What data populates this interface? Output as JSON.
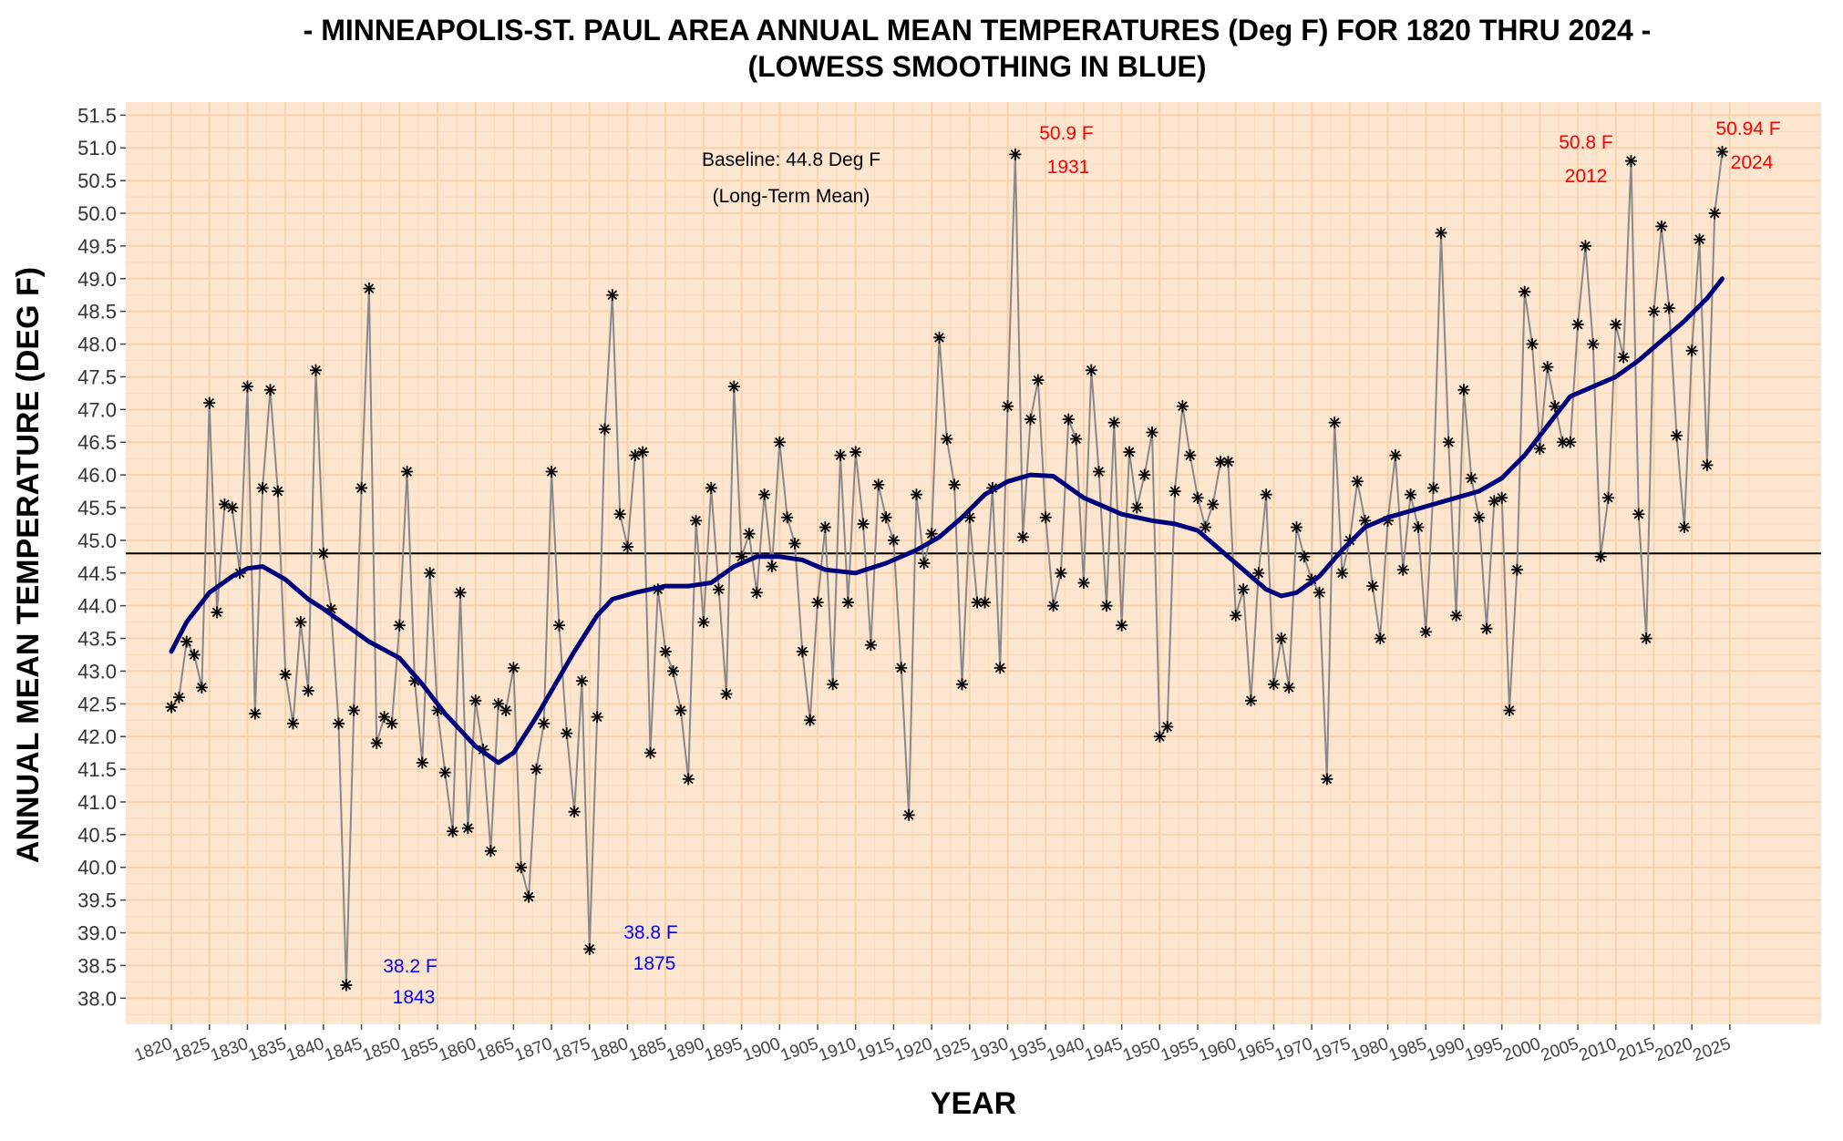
{
  "chart_data": {
    "type": "line",
    "title_line1": "- MINNEAPOLIS-ST. PAUL AREA ANNUAL MEAN TEMPERATURES (Deg F) FOR 1820 THRU 2024 -",
    "title_line2": "(LOWESS SMOOTHING IN BLUE)",
    "xlabel": "YEAR",
    "ylabel": "ANNUAL MEAN TEMPERATURE (DEG F)",
    "xlim": [
      1814,
      2037
    ],
    "ylim": [
      37.6,
      51.7
    ],
    "x_ticks": [
      1820,
      1825,
      1830,
      1835,
      1840,
      1845,
      1850,
      1855,
      1860,
      1865,
      1870,
      1875,
      1880,
      1885,
      1890,
      1895,
      1900,
      1905,
      1910,
      1915,
      1920,
      1925,
      1930,
      1935,
      1940,
      1945,
      1950,
      1955,
      1960,
      1965,
      1970,
      1975,
      1980,
      1985,
      1990,
      1995,
      2000,
      2005,
      2010,
      2015,
      2020,
      2025
    ],
    "y_ticks": [
      "38.0",
      "38.5",
      "39.0",
      "39.5",
      "40.0",
      "40.5",
      "41.0",
      "41.5",
      "42.0",
      "42.5",
      "43.0",
      "43.5",
      "44.0",
      "44.5",
      "45.0",
      "45.5",
      "46.0",
      "46.5",
      "47.0",
      "47.5",
      "48.0",
      "48.5",
      "49.0",
      "49.5",
      "50.0",
      "50.5",
      "51.0",
      "51.5"
    ],
    "grid": true,
    "colors": {
      "panel_bg": "#fde6d0",
      "grid_major": "#f7d2ad",
      "grid_minor": "#fadcbf",
      "annual_line": "#888888",
      "points": "#000000",
      "smooth_line": "#00007a",
      "baseline": "#000000",
      "anno_blue": "#0000ff",
      "anno_red": "#ff0000"
    },
    "baseline": {
      "value": 44.8,
      "label_line1": "Baseline: 44.8 Deg F",
      "label_line2": "(Long-Term Mean)"
    },
    "series": [
      {
        "name": "Annual mean",
        "x": [
          1820,
          1821,
          1822,
          1823,
          1824,
          1825,
          1826,
          1827,
          1828,
          1829,
          1830,
          1831,
          1832,
          1833,
          1834,
          1835,
          1836,
          1837,
          1838,
          1839,
          1840,
          1841,
          1842,
          1843,
          1844,
          1845,
          1846,
          1847,
          1848,
          1849,
          1850,
          1851,
          1852,
          1853,
          1854,
          1855,
          1856,
          1857,
          1858,
          1859,
          1860,
          1861,
          1862,
          1863,
          1864,
          1865,
          1866,
          1867,
          1868,
          1869,
          1870,
          1871,
          1872,
          1873,
          1874,
          1875,
          1876,
          1877,
          1878,
          1879,
          1880,
          1881,
          1882,
          1883,
          1884,
          1885,
          1886,
          1887,
          1888,
          1889,
          1890,
          1891,
          1892,
          1893,
          1894,
          1895,
          1896,
          1897,
          1898,
          1899,
          1900,
          1901,
          1902,
          1903,
          1904,
          1905,
          1906,
          1907,
          1908,
          1909,
          1910,
          1911,
          1912,
          1913,
          1914,
          1915,
          1916,
          1917,
          1918,
          1919,
          1920,
          1921,
          1922,
          1923,
          1924,
          1925,
          1926,
          1927,
          1928,
          1929,
          1930,
          1931,
          1932,
          1933,
          1934,
          1935,
          1936,
          1937,
          1938,
          1939,
          1940,
          1941,
          1942,
          1943,
          1944,
          1945,
          1946,
          1947,
          1948,
          1949,
          1950,
          1951,
          1952,
          1953,
          1954,
          1955,
          1956,
          1957,
          1958,
          1959,
          1960,
          1961,
          1962,
          1963,
          1964,
          1965,
          1966,
          1967,
          1968,
          1969,
          1970,
          1971,
          1972,
          1973,
          1974,
          1975,
          1976,
          1977,
          1978,
          1979,
          1980,
          1981,
          1982,
          1983,
          1984,
          1985,
          1986,
          1987,
          1988,
          1989,
          1990,
          1991,
          1992,
          1993,
          1994,
          1995,
          1996,
          1997,
          1998,
          1999,
          2000,
          2001,
          2002,
          2003,
          2004,
          2005,
          2006,
          2007,
          2008,
          2009,
          2010,
          2011,
          2012,
          2013,
          2014,
          2015,
          2016,
          2017,
          2018,
          2019,
          2020,
          2021,
          2022,
          2023,
          2024
        ],
        "values": [
          42.45,
          42.6,
          43.45,
          43.25,
          42.75,
          47.1,
          43.9,
          45.55,
          45.5,
          44.5,
          47.35,
          42.35,
          45.8,
          47.3,
          45.75,
          42.95,
          42.2,
          43.75,
          42.7,
          47.6,
          44.8,
          43.95,
          42.2,
          38.2,
          42.4,
          45.8,
          48.85,
          41.9,
          42.3,
          42.2,
          43.7,
          46.05,
          42.85,
          41.6,
          44.5,
          42.4,
          41.45,
          40.55,
          44.2,
          40.6,
          42.55,
          41.8,
          40.25,
          42.5,
          42.4,
          43.05,
          40.0,
          39.55,
          41.5,
          42.2,
          46.05,
          43.7,
          42.05,
          40.85,
          42.85,
          38.75,
          42.3,
          46.7,
          48.75,
          45.4,
          44.9,
          46.3,
          46.35,
          41.75,
          44.25,
          43.3,
          43.0,
          42.4,
          41.35,
          45.3,
          43.75,
          45.8,
          44.25,
          42.65,
          47.35,
          44.75,
          45.1,
          44.2,
          45.7,
          44.6,
          46.5,
          45.35,
          44.95,
          43.3,
          42.25,
          44.05,
          45.2,
          42.8,
          46.3,
          44.05,
          46.35,
          45.25,
          43.4,
          45.85,
          45.35,
          45.0,
          43.05,
          40.8,
          45.7,
          44.65,
          45.1,
          48.1,
          46.55,
          45.85,
          42.8,
          45.35,
          44.05,
          44.05,
          45.8,
          43.05,
          47.05,
          50.9,
          45.05,
          46.85,
          47.45,
          45.35,
          44.0,
          44.5,
          46.85,
          46.55,
          44.35,
          47.6,
          46.05,
          44.0,
          46.8,
          43.7,
          46.35,
          45.5,
          46.0,
          46.65,
          42.0,
          42.15,
          45.75,
          47.05,
          46.3,
          45.65,
          45.2,
          45.55,
          46.2,
          46.2,
          43.85,
          44.25,
          42.55,
          44.5,
          45.7,
          42.8,
          43.5,
          42.75,
          45.2,
          44.75,
          44.4,
          44.2,
          41.35,
          46.8,
          44.5,
          45.0,
          45.9,
          45.3,
          44.3,
          43.5,
          45.3,
          46.3,
          44.55,
          45.7,
          45.2,
          43.6,
          45.8,
          49.7,
          46.5,
          43.85,
          47.3,
          45.95,
          45.35,
          43.65,
          45.6,
          45.65,
          42.4,
          44.55,
          48.8,
          48.0,
          46.4,
          47.65,
          47.05,
          46.5,
          46.5,
          48.3,
          49.5,
          48.0,
          44.75,
          45.65,
          48.3,
          47.8,
          50.8,
          45.4,
          43.5,
          48.5,
          49.8,
          48.55,
          46.6,
          45.2,
          47.9,
          49.6,
          46.15,
          50.0,
          50.94
        ]
      },
      {
        "name": "LOWESS smoothing",
        "x": [
          1820,
          1822,
          1825,
          1828,
          1830,
          1832,
          1835,
          1838,
          1840,
          1843,
          1846,
          1850,
          1853,
          1856,
          1860,
          1863,
          1865,
          1868,
          1870,
          1873,
          1876,
          1878,
          1881,
          1885,
          1888,
          1891,
          1894,
          1897,
          1900,
          1903,
          1906,
          1910,
          1914,
          1918,
          1921,
          1924,
          1927,
          1930,
          1933,
          1936,
          1940,
          1945,
          1949,
          1952,
          1955,
          1958,
          1961,
          1964,
          1966,
          1968,
          1971,
          1974,
          1977,
          1980,
          1983,
          1986,
          1989,
          1992,
          1995,
          1998,
          2001,
          2004,
          2007,
          2010,
          2013,
          2016,
          2019,
          2022,
          2024
        ],
        "values": [
          43.3,
          43.75,
          44.2,
          44.45,
          44.57,
          44.6,
          44.4,
          44.1,
          43.95,
          43.7,
          43.45,
          43.2,
          42.8,
          42.35,
          41.85,
          41.6,
          41.75,
          42.3,
          42.7,
          43.3,
          43.85,
          44.1,
          44.2,
          44.3,
          44.3,
          44.35,
          44.6,
          44.75,
          44.75,
          44.7,
          44.55,
          44.5,
          44.65,
          44.85,
          45.05,
          45.35,
          45.7,
          45.9,
          46.0,
          45.98,
          45.65,
          45.4,
          45.3,
          45.25,
          45.15,
          44.85,
          44.55,
          44.25,
          44.15,
          44.2,
          44.45,
          44.85,
          45.2,
          45.35,
          45.45,
          45.55,
          45.65,
          45.75,
          45.95,
          46.3,
          46.75,
          47.2,
          47.35,
          47.5,
          47.75,
          48.05,
          48.35,
          48.7,
          49.0
        ]
      }
    ],
    "annotations": [
      {
        "value": "38.2 F",
        "year": "1843",
        "color": "blue"
      },
      {
        "value": "38.8 F",
        "year": "1875",
        "color": "blue"
      },
      {
        "value": "50.9 F",
        "year": "1931",
        "color": "red"
      },
      {
        "value": "50.8 F",
        "year": "2012",
        "color": "red"
      },
      {
        "value": "50.94 F",
        "year": "2024",
        "color": "red"
      }
    ]
  }
}
